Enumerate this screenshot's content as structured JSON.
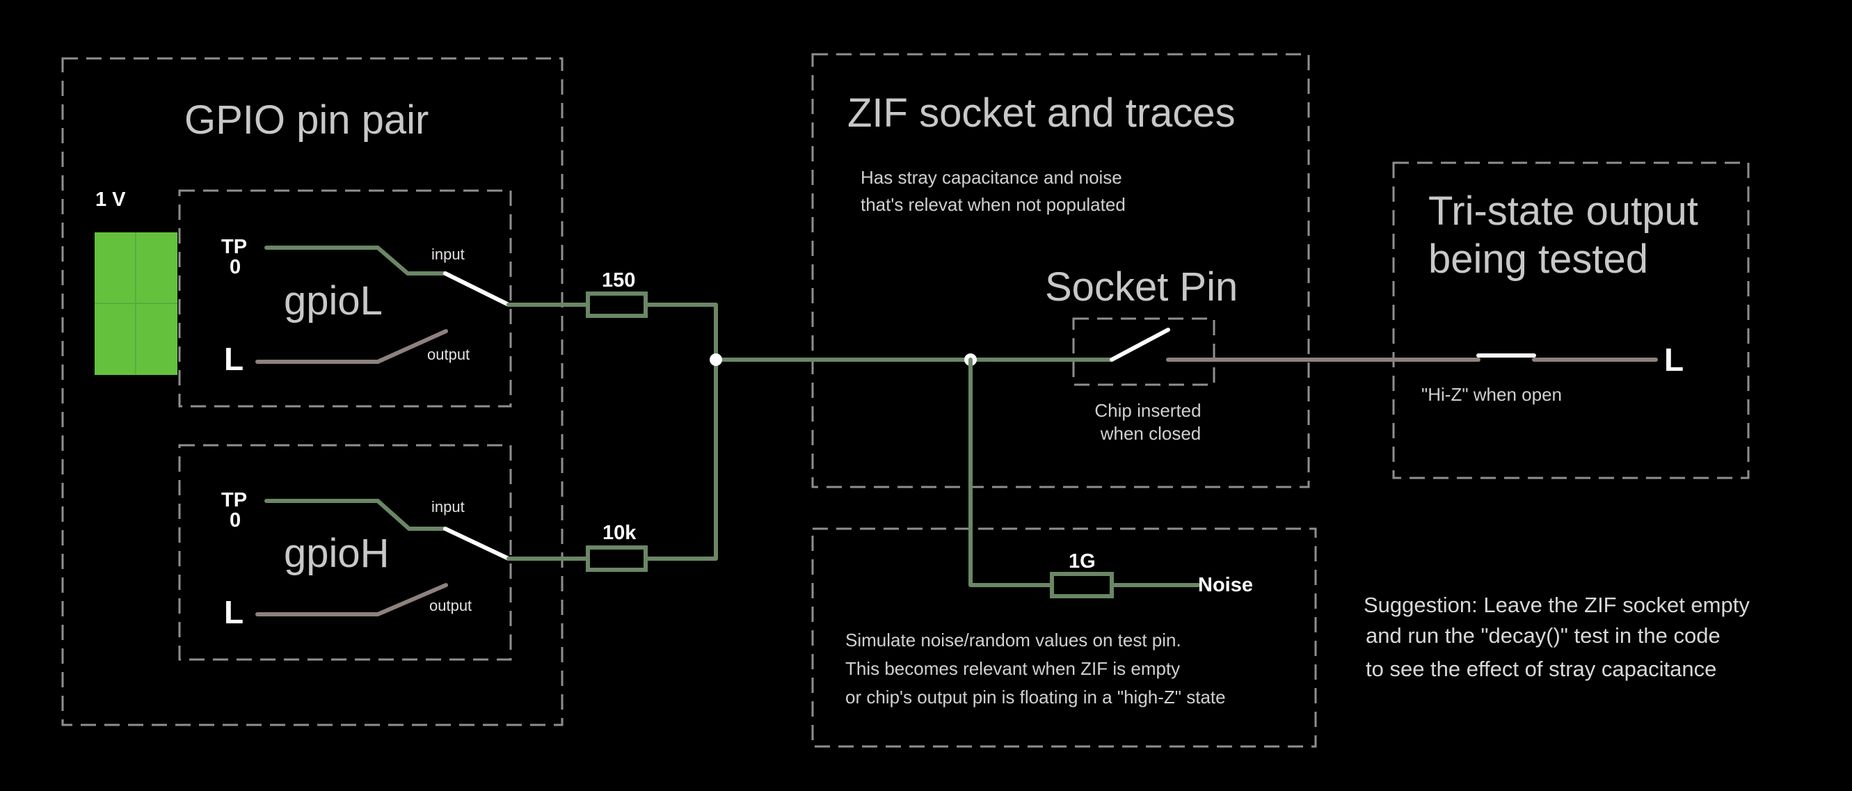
{
  "blocks": {
    "gpio_title": "GPIO pin pair",
    "zif_title": "ZIF socket and traces",
    "zif_note": [
      "Has stray capacitance and noise",
      "that's relevat when not populated"
    ],
    "socket_pin_title": "Socket Pin",
    "socket_caption": [
      "Chip inserted",
      "when closed"
    ],
    "tristate_title": [
      "Tri-state output",
      "being tested"
    ],
    "tristate_caption": "\"Hi-Z\" when open",
    "noise_note": [
      "Simulate noise/random values on test pin.",
      "This becomes relevant when ZIF is empty",
      "or chip's output pin is floating in a \"high-Z\" state"
    ],
    "suggestion": [
      "Suggestion: Leave the ZIF socket empty",
      "and run the \"decay()\" test in the code",
      "to see the effect of stray capacitance"
    ]
  },
  "components": {
    "source_voltage": "1 V",
    "gpio_l": {
      "name": "gpioL",
      "tp": [
        "TP",
        "0"
      ],
      "level": "L",
      "input_label": "input",
      "output_label": "output"
    },
    "gpio_h": {
      "name": "gpioH",
      "tp": [
        "TP",
        "0"
      ],
      "level": "L",
      "input_label": "input",
      "output_label": "output"
    },
    "resistor_l": "150",
    "resistor_h": "10k",
    "resistor_noise": "1G",
    "noise_label": "Noise",
    "tristate_level": "L"
  },
  "colors": {
    "wire_green": "#6b8766",
    "wire_red": "#8e817e",
    "source_green": "#64c13e",
    "box_border": "#8f8f8f"
  }
}
